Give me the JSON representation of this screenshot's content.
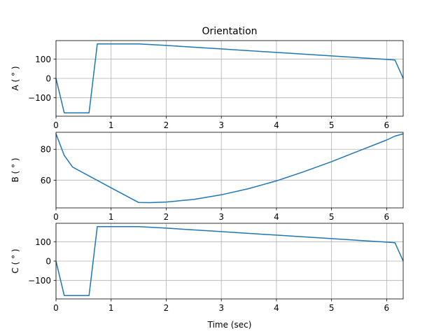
{
  "chart_data": {
    "type": "line",
    "title": "Orientation",
    "xlabel": "Time (sec)",
    "xlim": [
      0,
      6.3
    ],
    "xticks": [
      0,
      1,
      2,
      3,
      4,
      5,
      6
    ],
    "grid": true,
    "color": "#1f77b4",
    "subplots": [
      {
        "ylabel": "A ( $^\\circ$ )",
        "ylabel_display": "A ( ° )",
        "ylim": [
          -195,
          195
        ],
        "yticks": [
          100,
          0,
          -100
        ],
        "x": [
          0,
          0.15,
          0.6,
          0.75,
          1.5,
          2.0,
          3.0,
          4.0,
          5.0,
          6.0,
          6.15,
          6.3
        ],
        "y": [
          0,
          -178,
          -178,
          178,
          178,
          170,
          152,
          134,
          116,
          98,
          95,
          0
        ]
      },
      {
        "ylabel": "B ( $^\\circ$ )",
        "ylabel_display": "B ( ° )",
        "ylim": [
          42,
          91
        ],
        "yticks": [
          80,
          60
        ],
        "x": [
          0,
          0.15,
          0.3,
          1.0,
          1.5,
          1.7,
          2.0,
          2.5,
          3.0,
          3.5,
          4.0,
          4.5,
          5.0,
          5.5,
          6.0,
          6.15,
          6.3
        ],
        "y": [
          90,
          76,
          68.5,
          55,
          45.5,
          45.4,
          45.8,
          47.5,
          50.5,
          54.5,
          59.5,
          65.5,
          72,
          79,
          86,
          88.5,
          90
        ]
      },
      {
        "ylabel": "C ( $^\\circ$ )",
        "ylabel_display": "C ( ° )",
        "ylim": [
          -195,
          195
        ],
        "yticks": [
          100,
          0,
          -100
        ],
        "x": [
          0,
          0.15,
          0.6,
          0.75,
          1.5,
          2.0,
          3.0,
          4.0,
          5.0,
          6.0,
          6.15,
          6.3
        ],
        "y": [
          0,
          -178,
          -178,
          178,
          178,
          170,
          152,
          134,
          116,
          98,
          95,
          0
        ]
      }
    ]
  }
}
